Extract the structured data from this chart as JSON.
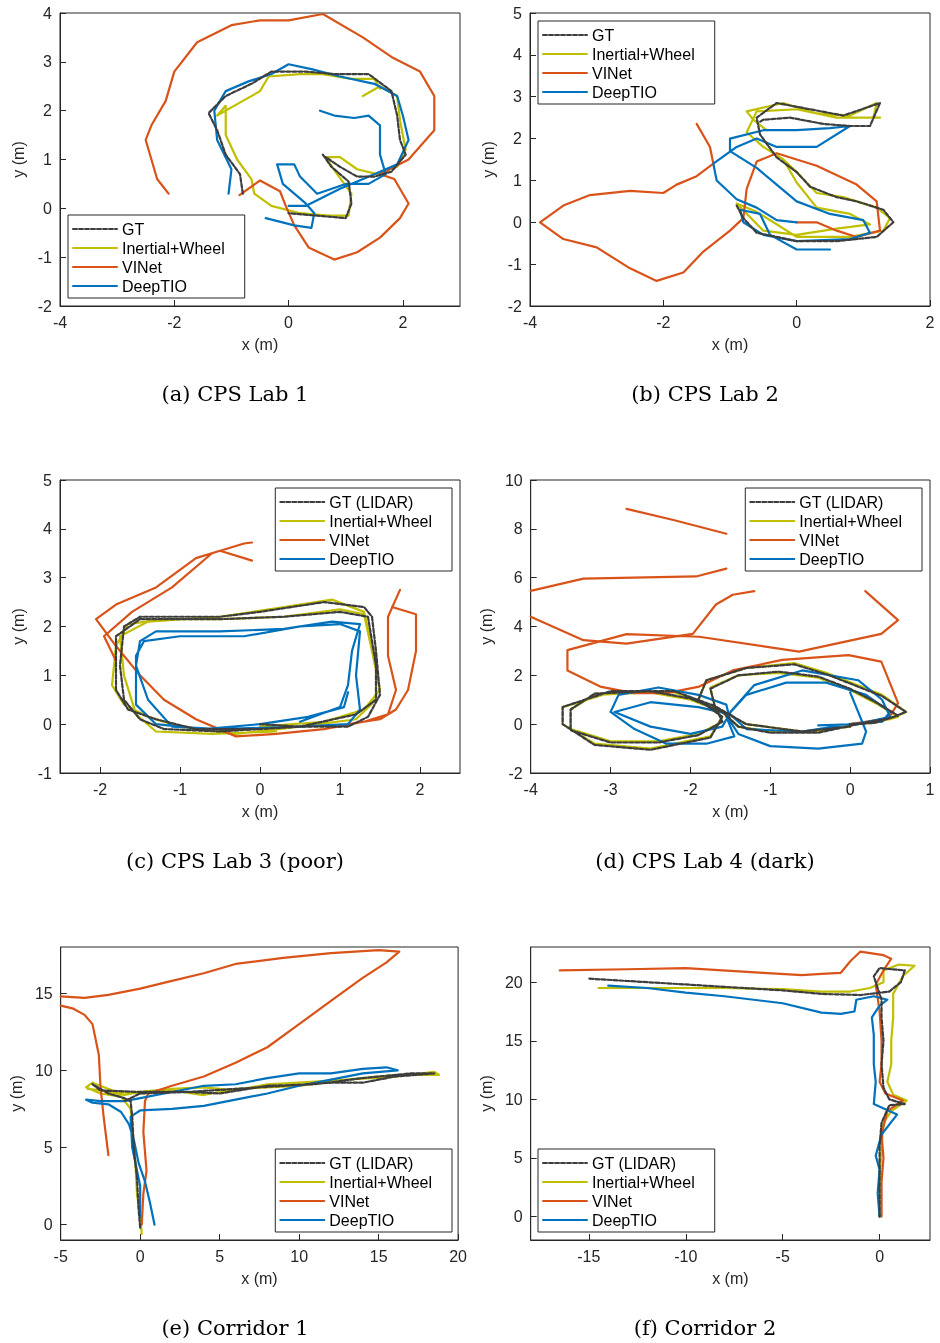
{
  "chart_data": [
    {
      "type": "line",
      "title": "(a) CPS Lab 1",
      "xlabel": "x (m)",
      "ylabel": "y (m)",
      "xlim": [
        -4,
        3
      ],
      "xticks": [
        -4,
        -2,
        0,
        2
      ],
      "ylim": [
        -2,
        4
      ],
      "yticks": [
        -2,
        -1,
        0,
        1,
        2,
        3,
        4
      ],
      "grid": false,
      "legend": "bottom left",
      "marker": "none",
      "series": [
        {
          "name": "GT",
          "color": "#3d3d3d",
          "line_style": "dashed",
          "x": [
            0.6,
            0.75,
            1.05,
            1.1,
            1.0,
            0.5,
            0,
            null,
            -0.8,
            -0.85,
            -1.1,
            -1.25,
            -1.4,
            -1.1,
            -0.65,
            -0.3,
            0.3,
            0.8,
            1.4,
            1.8,
            1.9,
            1.95,
            2.05,
            1.8,
            1.5,
            1.2,
            0.9,
            0.65
          ],
          "values": [
            1.1,
            0.85,
            0.55,
            0.1,
            -0.2,
            -0.15,
            -0.1,
            null,
            0.3,
            0.7,
            1.1,
            1.6,
            1.95,
            2.3,
            2.55,
            2.8,
            2.8,
            2.75,
            2.75,
            2.4,
            1.9,
            1.4,
            1.1,
            0.75,
            0.65,
            0.65,
            0.85,
            1.05
          ]
        },
        {
          "name": "Inertial+Wheel",
          "color": "#c0c000",
          "line_style": "solid",
          "x": [
            1.3,
            1.6,
            1.9,
            1.95,
            2.05,
            1.9,
            1.55,
            1.2,
            0.9,
            0.65,
            0.85,
            1.1,
            1.05,
            0.7,
            0.2,
            -0.3,
            -0.6,
            -0.65,
            -0.9,
            -1.1,
            -1.1,
            -1.25,
            -0.8,
            -0.5,
            -0.35,
            0.2,
            0.6,
            1.1,
            1.5,
            1.6
          ],
          "values": [
            2.3,
            2.5,
            2.3,
            1.8,
            1.2,
            0.85,
            0.7,
            0.8,
            1.05,
            1.05,
            0.7,
            0.3,
            -0.15,
            -0.15,
            -0.1,
            0.05,
            0.3,
            0.6,
            1.0,
            1.5,
            2.1,
            1.9,
            2.2,
            2.4,
            2.7,
            2.75,
            2.75,
            2.65,
            2.65,
            2.45
          ]
        },
        {
          "name": "VINet",
          "color": "#d95319",
          "line_style": "solid",
          "x": [
            -0.86,
            -0.5,
            -0.15,
            -0.05,
            0.1,
            0.35,
            0.8,
            1.2,
            1.6,
            1.95,
            2.1,
            1.85,
            1.6,
            2.1,
            2.55,
            2.55,
            2.3,
            1.8,
            1.3,
            0.6,
            0,
            -0.5,
            -1.0,
            -1.6,
            -2.0,
            -2.15,
            -2.4,
            -2.5,
            -2.3,
            -2.1
          ],
          "values": [
            0.27,
            0.57,
            0.35,
            0.05,
            -0.35,
            -0.8,
            -1.05,
            -0.9,
            -0.6,
            -0.2,
            0.1,
            0.6,
            0.7,
            1.0,
            1.6,
            2.3,
            2.8,
            3.1,
            3.5,
            3.98,
            3.85,
            3.85,
            3.75,
            3.4,
            2.8,
            2.2,
            1.7,
            1.4,
            0.6,
            0.3
          ]
        },
        {
          "name": "DeepTIO",
          "color": "#0072bd",
          "line_style": "solid",
          "x": [
            0.55,
            0.8,
            1.15,
            1.4,
            1.6,
            1.6,
            1.7,
            1.4,
            1.0,
            0.5,
            0.2,
            0.1,
            -0.2,
            -0.1,
            0.3,
            0.45,
            0.4,
            0.1,
            -0.4,
            null,
            -1.05,
            -1.0,
            -1.25,
            -1.3,
            -1.1,
            -0.7,
            -0.3,
            0,
            0.4,
            0.9,
            1.5,
            1.9,
            2.0,
            2.1,
            1.9,
            1.5,
            0.9,
            0.3,
            0
          ],
          "values": [
            2.0,
            1.9,
            1.85,
            1.9,
            1.7,
            1.1,
            0.7,
            0.5,
            0.5,
            0.3,
            0.65,
            0.9,
            0.9,
            0.5,
            0.1,
            -0.1,
            -0.4,
            -0.35,
            -0.2,
            null,
            0.3,
            0.8,
            1.4,
            2.0,
            2.4,
            2.6,
            2.75,
            2.95,
            2.85,
            2.7,
            2.55,
            2.3,
            1.9,
            1.4,
            0.9,
            0.7,
            0.4,
            0.05,
            0.05
          ]
        }
      ]
    },
    {
      "type": "line",
      "title": "(b) CPS Lab 2",
      "xlabel": "x (m)",
      "ylabel": "y (m)",
      "xlim": [
        -4,
        2
      ],
      "xticks": [
        -4,
        -2,
        0,
        2
      ],
      "ylim": [
        -2,
        5
      ],
      "yticks": [
        -2,
        -1,
        0,
        1,
        2,
        3,
        4,
        5
      ],
      "grid": false,
      "legend": "top left",
      "marker": "none",
      "series": [
        {
          "name": "GT",
          "color": "#3d3d3d",
          "line_style": "dashed",
          "x": [
            -0.9,
            -0.8,
            -0.6,
            0,
            0.6,
            1.2,
            1.45,
            1.3,
            0.9,
            0.6,
            0.2,
            0,
            -0.3,
            -0.55,
            -0.6,
            -0.3,
            0.2,
            0.7,
            1.25,
            1.1,
            0.8,
            0.4,
            -0.1,
            -0.5,
            -0.55
          ],
          "values": [
            0.4,
            0.1,
            -0.25,
            -0.45,
            -0.45,
            -0.35,
            0,
            0.3,
            0.5,
            0.6,
            0.85,
            1.2,
            1.55,
            2.1,
            2.5,
            2.85,
            2.7,
            2.55,
            2.85,
            2.3,
            2.3,
            2.35,
            2.5,
            2.45,
            2.4
          ]
        },
        {
          "name": "Inertial+Wheel",
          "color": "#c0c000",
          "line_style": "solid",
          "x": [
            -0.45,
            -0.65,
            -0.75,
            -0.2,
            0.3,
            0.8,
            1.2,
            1.15,
            1.25,
            0.6,
            0,
            -0.6,
            -0.75,
            -0.5,
            -0.2,
            0,
            0.3,
            0.8,
            1.1,
            0.6,
            0,
            -0.5,
            -0.9,
            -0.6,
            0,
            0.8,
            1.3,
            1.4,
            1.2,
            0.7,
            0.3,
            0,
            -0.2
          ],
          "values": [
            2.2,
            2.45,
            2.65,
            2.85,
            2.6,
            2.55,
            2.85,
            2.5,
            2.5,
            2.5,
            2.7,
            2.65,
            2.15,
            1.8,
            1.5,
            0.95,
            0.35,
            0.2,
            -0.05,
            -0.15,
            -0.3,
            -0.2,
            0.45,
            0.25,
            -0.35,
            -0.35,
            -0.2,
            0.1,
            0.35,
            0.6,
            0.7,
            1.2,
            1.5
          ]
        },
        {
          "name": "VINet",
          "color": "#d95319",
          "line_style": "solid",
          "x": [
            -1.5,
            -1.3,
            -1.25,
            -1.5,
            -1.8,
            -2,
            -2.5,
            -3.1,
            -3.5,
            -3.85,
            -3.5,
            -3.0,
            -2.5,
            -2.1,
            -1.7,
            -1.4,
            -1.0,
            -0.8,
            -0.75,
            -0.6,
            -0.3,
            0.3,
            0.9,
            1.2,
            1.25,
            0.9,
            0.6,
            0.3,
            0
          ],
          "values": [
            2.35,
            1.8,
            1.4,
            1.1,
            0.9,
            0.7,
            0.75,
            0.65,
            0.4,
            0,
            -0.4,
            -0.6,
            -1.1,
            -1.4,
            -1.2,
            -0.7,
            -0.2,
            0.1,
            0.8,
            1.45,
            1.65,
            1.35,
            0.9,
            0.5,
            -0.2,
            -0.35,
            -0.2,
            0,
            0
          ]
        },
        {
          "name": "DeepTIO",
          "color": "#0072bd",
          "line_style": "solid",
          "x": [
            0,
            -0.3,
            -0.6,
            -0.9,
            -1.2,
            -1.25,
            -0.9,
            -0.6,
            -0.3,
            0.3,
            0.8,
            0.5,
            0,
            -0.5,
            -1,
            -1.0,
            -0.6,
            -0.3,
            0,
            0.5,
            1.0,
            1.1,
            0.8,
            0,
            -0.5,
            -0.8,
            -0.85,
            -0.55,
            -0.4,
            0,
            0.5
          ],
          "values": [
            0,
            0.05,
            0.35,
            0.55,
            1.0,
            1.4,
            1.8,
            2.0,
            1.8,
            1.8,
            2.3,
            2.25,
            2.2,
            2.2,
            2.0,
            1.7,
            1.3,
            0.9,
            0.5,
            0.2,
            0.05,
            -0.25,
            -0.4,
            -0.45,
            -0.3,
            0,
            0.3,
            0.2,
            -0.3,
            -0.65,
            -0.65
          ]
        }
      ]
    },
    {
      "type": "line",
      "title": "(c) CPS Lab 3 (poor)",
      "xlabel": "x (m)",
      "ylabel": "y (m)",
      "xlim": [
        -2.5,
        2.5
      ],
      "xticks": [
        -2,
        -1,
        0,
        1,
        2
      ],
      "ylim": [
        -1,
        5
      ],
      "yticks": [
        -1,
        0,
        1,
        2,
        3,
        4,
        5
      ],
      "grid": false,
      "legend": "top right",
      "marker": "none",
      "series": [
        {
          "name": "GT (LIDAR)",
          "color": "#3d3d3d",
          "line_style": "dashed",
          "x": [
            0,
            0.5,
            1.1,
            1.35,
            1.5,
            1.45,
            1.4,
            1.3,
            0.8,
            0,
            -0.5,
            -1.0,
            -1.5,
            -1.7,
            -1.75,
            -1.7,
            -1.5,
            -1.2,
            -0.5,
            0.5,
            1.2,
            1.45,
            1.45,
            1.35,
            1.0,
            0.3,
            -0.5,
            -1.5,
            -1.8,
            -1.8,
            -1.65,
            -1.3,
            -0.8,
            0
          ],
          "values": [
            0,
            -0.05,
            -0.05,
            0.15,
            0.6,
            1.5,
            2.2,
            2.4,
            2.5,
            2.3,
            2.2,
            2.2,
            2.2,
            2.0,
            1.2,
            0.5,
            0.1,
            -0.1,
            -0.15,
            -0.05,
            0.2,
            0.5,
            1.2,
            2.2,
            2.3,
            2.2,
            2.15,
            2.15,
            1.8,
            0.7,
            0.3,
            0.1,
            -0.1,
            -0.1
          ]
        },
        {
          "name": "Inertial+Wheel",
          "color": "#c0c000",
          "line_style": "solid",
          "x": [
            0,
            0.8,
            1.3,
            1.5,
            1.4,
            1.3,
            1.0,
            0.3,
            -0.5,
            -1.2,
            -1.65,
            -1.8,
            -1.85,
            -1.7,
            -1.4,
            -1.0,
            -0.3,
            0.5,
            1.2,
            1.45,
            1.45,
            1.3,
            0.9,
            0.3,
            -0.5,
            -1.4,
            -1.75,
            -1.7,
            -1.55,
            -1.3,
            -0.6,
            0.2
          ],
          "values": [
            -0.05,
            0.05,
            0.3,
            0.7,
            1.5,
            2.25,
            2.35,
            2.2,
            2.15,
            2.15,
            2.05,
            1.6,
            0.8,
            0.4,
            0.15,
            -0.05,
            -0.2,
            -0.05,
            0.1,
            0.5,
            1.3,
            2.3,
            2.55,
            2.4,
            2.2,
            2.1,
            1.8,
            1.0,
            0.2,
            -0.15,
            -0.2,
            -0.15
          ]
        },
        {
          "name": "VINet",
          "color": "#d95319",
          "line_style": "solid",
          "x": [
            -1.8,
            -1.95,
            -1.6,
            -1.1,
            -0.6,
            -0.2,
            -0.1,
            null,
            1.75,
            1.6,
            1.6,
            1.7,
            1.6,
            1.3,
            0.8,
            0.2,
            -0.3,
            -0.8,
            -1.2,
            -1.5,
            -1.8,
            -2.05,
            -1.8,
            -1.3,
            -0.8,
            -0.5,
            -0.2,
            -0.1,
            null,
            1.65,
            1.95,
            1.95,
            1.85,
            1.7,
            1.5,
            1.1
          ],
          "values": [
            1.3,
            1.8,
            2.3,
            2.8,
            3.5,
            3.7,
            3.72,
            null,
            2.75,
            2.2,
            1.4,
            0.7,
            0.2,
            0.05,
            -0.1,
            -0.2,
            -0.25,
            0.1,
            0.5,
            1.0,
            1.6,
            2.15,
            2.45,
            2.8,
            3.4,
            3.55,
            3.4,
            3.35,
            null,
            2.4,
            2.25,
            1.5,
            0.7,
            0.3,
            0.1,
            0.0
          ]
        },
        {
          "name": "DeepTIO",
          "color": "#0072bd",
          "line_style": "solid",
          "x": [
            1.1,
            1.05,
            0.6,
            0,
            -0.7,
            -1.3,
            -1.55,
            -1.55,
            -1.45,
            -1.0,
            -0.2,
            0.5,
            1.0,
            1.25,
            1.2,
            1.25,
            1.1,
            0.5,
            -0.5,
            -1.1,
            -1.4,
            -1.55,
            -1.5,
            -1.3,
            -0.5,
            0.3,
            0.9,
            1.25,
            1.15,
            1.1,
            1.0,
            0.5
          ],
          "values": [
            0.65,
            0.35,
            0.15,
            0,
            -0.1,
            0,
            0.4,
            1.4,
            1.7,
            1.8,
            1.8,
            2.0,
            2.05,
            1.9,
            1.0,
            0.3,
            0.0,
            -0.05,
            -0.1,
            -0.05,
            0.5,
            1.2,
            1.7,
            1.9,
            1.9,
            1.95,
            2.1,
            2.05,
            1.5,
            0.8,
            0.35,
            0.05
          ]
        }
      ]
    },
    {
      "type": "line",
      "title": "(d) CPS Lab 4 (dark)",
      "xlabel": "x (m)",
      "ylabel": "y (m)",
      "xlim": [
        -4,
        1
      ],
      "xticks": [
        -4,
        -3,
        -2,
        -1,
        0,
        1
      ],
      "ylim": [
        -2,
        10
      ],
      "yticks": [
        -2,
        0,
        2,
        4,
        6,
        8,
        10
      ],
      "grid": false,
      "legend": "top right",
      "marker": "none",
      "series": [
        {
          "name": "GT (LIDAR)",
          "color": "#3d3d3d",
          "line_style": "dashed",
          "x": [
            0,
            0.3,
            0.6,
            0.35,
            0,
            -0.4,
            -0.9,
            -1.4,
            -1.75,
            -1.7,
            -1.6,
            -1.9,
            -2.4,
            -3.0,
            -3.5,
            -3.5,
            -3.2,
            -2.5,
            -2.0,
            -1.6,
            -1.4,
            -1.0,
            -0.4,
            0.1,
            0.5,
            0.7,
            0.4,
            -0.3,
            -0.7,
            -1.3,
            -1.8,
            -1.9,
            -1.6,
            -1.75,
            -2.5,
            -3.2,
            -3.6,
            -3.6,
            -3.0,
            -2.2,
            -1.7,
            -1.3,
            -0.6,
            0
          ],
          "values": [
            0,
            0.05,
            0.35,
            0.85,
            1.45,
            1.95,
            2.15,
            2.0,
            1.45,
            0.8,
            0.1,
            -0.45,
            -0.75,
            -0.75,
            -0.25,
            0.6,
            1.25,
            1.35,
            1.05,
            0.5,
            -0.1,
            -0.35,
            -0.35,
            0,
            0.25,
            0.5,
            1.15,
            2.05,
            2.45,
            2.3,
            1.8,
            1.0,
            0.3,
            -0.55,
            -1.05,
            -0.85,
            0,
            0.7,
            1.35,
            1.35,
            0.75,
            0,
            -0.3,
            -0.1
          ]
        },
        {
          "name": "Inertial+Wheel",
          "color": "#c0c000",
          "line_style": "solid",
          "x": [
            0,
            0.3,
            0.6,
            0.35,
            0,
            -0.4,
            -0.9,
            -1.4,
            -1.75,
            -1.7,
            -1.6,
            -1.9,
            -2.4,
            -3.0,
            -3.5,
            -3.5,
            -3.2,
            -2.5,
            -2.0,
            -1.6,
            -1.4,
            -1.0,
            -0.4,
            0.1,
            0.5,
            0.7,
            0.4,
            -0.3,
            -0.7,
            -1.3,
            -1.8,
            -1.9,
            -1.6,
            -1.75,
            -2.5,
            -3.2,
            -3.6,
            -3.6,
            -3.0,
            -2.2,
            -1.7,
            -1.3,
            -0.6,
            0
          ],
          "values": [
            0,
            0.05,
            0.3,
            0.8,
            1.4,
            1.9,
            2.1,
            2.0,
            1.5,
            0.8,
            0.1,
            -0.4,
            -0.7,
            -0.7,
            -0.2,
            0.6,
            1.2,
            1.3,
            1.0,
            0.5,
            -0.1,
            -0.3,
            -0.3,
            0,
            0.2,
            0.5,
            1.2,
            2.1,
            2.5,
            2.3,
            1.8,
            1.0,
            0.3,
            -0.5,
            -1.0,
            -0.8,
            0,
            0.7,
            1.3,
            1.3,
            0.7,
            0,
            -0.3,
            -0.1
          ]
        },
        {
          "name": "VINet",
          "color": "#d95319",
          "line_style": "solid",
          "x": [
            -2.8,
            -2.2,
            -1.55,
            null,
            -1.55,
            -1.93,
            -3.34,
            -4,
            null,
            -4,
            -3.34,
            -2.8,
            -1.97,
            -1.68,
            -1.47,
            -1.2,
            null,
            0.19,
            0.6,
            0.39,
            -0.64,
            -1.89,
            -2.8,
            -3.54,
            -3.54,
            -3.13,
            -2.71,
            -2.3,
            -1.89,
            -1.47,
            -0.85,
            -0.02,
            0.39,
            0.6,
            0.48,
            0
          ],
          "values": [
            8.82,
            8.35,
            7.8,
            null,
            6.37,
            6.05,
            5.96,
            5.46,
            null,
            4.4,
            3.44,
            3.3,
            3.7,
            4.9,
            5.3,
            5.45,
            null,
            5.45,
            4.26,
            3.7,
            2.97,
            3.58,
            3.69,
            3.03,
            2.2,
            1.54,
            1.27,
            1.27,
            1.54,
            2.2,
            2.63,
            2.83,
            2.56,
            0.86,
            0.24,
            0
          ]
        },
        {
          "name": "DeepTIO",
          "color": "#0072bd",
          "line_style": "solid",
          "x": [
            0,
            0.1,
            0.2,
            0.15,
            -0.4,
            -1.0,
            -1.4,
            -1.5,
            -1.55,
            -1.9,
            -2.4,
            -2.9,
            -3.0,
            -2.7,
            -2.3,
            -1.8,
            -1.45,
            -1.55,
            -1.3,
            -0.8,
            -0.3,
            0.2,
            0.5,
            0.4,
            0,
            -0.6,
            -1.3,
            -1.5,
            -1.9,
            -2.5,
            -2.95,
            -2.5,
            -2.0,
            -1.6,
            -1.5,
            -1.2,
            -0.6,
            0.1,
            0.4,
            0.5,
            0.1,
            -0.4
          ],
          "values": [
            1.3,
            0.5,
            -0.3,
            -0.8,
            -1.0,
            -0.9,
            -0.4,
            0.1,
            0.8,
            1.2,
            1.5,
            1.2,
            0.5,
            -0.2,
            -0.8,
            -0.8,
            -0.5,
            0.3,
            1.2,
            1.7,
            1.7,
            1.2,
            0.5,
            0.1,
            0,
            -0.3,
            -0.2,
            0.4,
            0.7,
            0.9,
            0.5,
            -0.1,
            -0.4,
            -0.1,
            0.5,
            1.6,
            2.2,
            1.8,
            1.0,
            0.3,
            0,
            -0.05
          ]
        }
      ]
    },
    {
      "type": "line",
      "title": "(e) Corridor 1",
      "xlabel": "x (m)",
      "ylabel": "y (m)",
      "xlim": [
        -5,
        20
      ],
      "xticks": [
        -5,
        0,
        5,
        10,
        15,
        20
      ],
      "ylim": [
        -1,
        18
      ],
      "yticks": [
        0,
        5,
        10,
        15
      ],
      "grid": false,
      "legend": "bottom right",
      "marker": "none",
      "series": [
        {
          "name": "GT (LIDAR)",
          "color": "#3d3d3d",
          "line_style": "dashed",
          "x": [
            0,
            -0.1,
            -0.2,
            -0.4,
            -0.5,
            -0.6,
            -1,
            -2,
            -3,
            -2.5,
            0,
            3,
            6,
            9,
            12,
            14,
            16,
            18.5,
            17,
            14,
            11,
            8,
            5,
            3,
            0,
            -1
          ],
          "values": [
            -0.2,
            1,
            3,
            5,
            7,
            8,
            8.2,
            8.5,
            9.1,
            8.7,
            8.6,
            8.6,
            8.8,
            9.0,
            9.2,
            9.2,
            9.6,
            9.8,
            9.8,
            9.5,
            9.1,
            9.0,
            8.5,
            8.6,
            8.5,
            8.0
          ]
        },
        {
          "name": "Inertial+Wheel",
          "color": "#c0c000",
          "line_style": "solid",
          "x": [
            0.1,
            0,
            -0.2,
            -0.3,
            -0.5,
            -0.6,
            -1.2,
            -2.5,
            -3.4,
            -3,
            -1.5,
            0,
            2,
            4,
            6,
            8,
            10,
            13,
            16,
            18.5,
            18.8,
            16,
            13,
            10,
            8,
            6,
            4,
            2,
            0,
            -1,
            -2.5,
            -3.3
          ],
          "values": [
            -0.6,
            0.5,
            2,
            4,
            6,
            7.5,
            8.3,
            8.5,
            8.9,
            9.2,
            8.6,
            8.5,
            8.7,
            8.4,
            8.8,
            8.9,
            9.0,
            9.4,
            9.6,
            9.9,
            9.7,
            9.7,
            9.4,
            9.2,
            9.1,
            8.7,
            8.9,
            8.8,
            8.6,
            8.4,
            8.7,
            8.8
          ]
        },
        {
          "name": "VINet",
          "color": "#d95319",
          "line_style": "solid",
          "x": [
            -2,
            -2.3,
            -2.5,
            -2.6,
            -2.8,
            -3,
            -3.5,
            -4.2,
            -5,
            null,
            -5,
            -3.5,
            -2,
            0,
            2,
            4,
            6,
            9,
            12,
            15,
            16.3,
            15.5,
            14,
            12,
            10,
            8,
            6,
            4,
            2,
            0.5,
            0.3,
            0.2,
            0.4,
            0.2,
            0.1
          ],
          "values": [
            4.5,
            7,
            9,
            11,
            12,
            13,
            13.6,
            14,
            14.2,
            null,
            14.8,
            14.7,
            14.9,
            15.3,
            15.8,
            16.3,
            16.9,
            17.3,
            17.6,
            17.8,
            17.7,
            17,
            16,
            14.5,
            13,
            11.5,
            10.5,
            9.6,
            9,
            8.5,
            8,
            6,
            3.5,
            2,
            0
          ]
        },
        {
          "name": "DeepTIO",
          "color": "#0072bd",
          "line_style": "solid",
          "x": [
            0.9,
            0.6,
            0.3,
            -0.1,
            -0.4,
            -0.7,
            -1.2,
            -2,
            -3,
            -3.4,
            -2.5,
            -1,
            0,
            2,
            4,
            6,
            8,
            10,
            12,
            14,
            15.5,
            16.2,
            14,
            12,
            10,
            8,
            6,
            4,
            2,
            0,
            -0.6,
            -0.5,
            -0.2,
            0,
            0
          ],
          "values": [
            0,
            1.5,
            2.8,
            4,
            5.5,
            6.5,
            7.3,
            7.8,
            7.9,
            8.1,
            8.0,
            8.0,
            8.2,
            8.6,
            9.0,
            9.1,
            9.5,
            9.8,
            9.8,
            10.1,
            10.2,
            10,
            9.8,
            9.4,
            9.0,
            8.5,
            8.1,
            7.7,
            7.5,
            7.4,
            7,
            5,
            3.5,
            2.5,
            0.5
          ]
        }
      ]
    },
    {
      "type": "line",
      "title": "(f) Corridor 2",
      "xlabel": "x (m)",
      "ylabel": "y (m)",
      "xlim": [
        -18,
        2.6
      ],
      "xticks": [
        -15,
        -10,
        -5,
        0
      ],
      "ylim": [
        -2,
        23
      ],
      "yticks": [
        0,
        5,
        10,
        15,
        20
      ],
      "grid": false,
      "legend": "bottom left",
      "marker": "none",
      "series": [
        {
          "name": "GT (LIDAR)",
          "color": "#3d3d3d",
          "line_style": "dashed",
          "x": [
            0,
            0,
            0,
            0.1,
            0.5,
            1.3,
            0.5,
            0.2,
            0.1,
            0.2,
            0.1,
            0.1,
            -0.3,
            0,
            1.3,
            1.1,
            0.5,
            -1,
            -3,
            -5,
            -8,
            -11,
            -13,
            -15
          ],
          "values": [
            0,
            3,
            6,
            8,
            9.5,
            9.6,
            10,
            11,
            13,
            15,
            17,
            18.5,
            20.5,
            21.2,
            21,
            20,
            19.2,
            18.9,
            19,
            19.3,
            19.6,
            19.9,
            20.1,
            20.3
          ]
        },
        {
          "name": "Inertial+Wheel",
          "color": "#c0c000",
          "line_style": "solid",
          "x": [
            0,
            0,
            0.1,
            0.2,
            0.6,
            1.4,
            0.7,
            0.4,
            0.6,
            0.6,
            0.7,
            0.7,
            1.2,
            1.8,
            1.0,
            0.2,
            0.2,
            -0.5,
            -1.5,
            -3,
            -5,
            -8,
            -10,
            -12,
            -14.5
          ],
          "values": [
            0,
            3,
            6,
            8,
            9,
            9.9,
            10.4,
            11.5,
            13,
            15,
            17,
            19,
            20.5,
            21.4,
            21.5,
            21,
            20,
            19.5,
            19.2,
            19.2,
            19.4,
            19.5,
            19.5,
            19.5,
            19.5
          ]
        },
        {
          "name": "VINet",
          "color": "#d95319",
          "line_style": "solid",
          "x": [
            0.1,
            0.1,
            0.2,
            0.1,
            0.4,
            1.2,
            0.3,
            0,
            0.1,
            0.1,
            0,
            -0.2,
            0.2,
            0.6,
            0.2,
            -1,
            -1.5,
            -2,
            -3,
            -4,
            -6,
            -10,
            -13,
            -16.5
          ],
          "values": [
            0,
            3,
            5,
            7,
            9,
            9.9,
            10.5,
            11.5,
            13,
            15,
            17.5,
            19.8,
            21,
            22,
            22.3,
            22.6,
            21.8,
            20.8,
            20.7,
            20.6,
            20.8,
            21.2,
            21.1,
            21.0
          ]
        },
        {
          "name": "DeepTIO",
          "color": "#0072bd",
          "line_style": "solid",
          "x": [
            0,
            -0.1,
            0,
            -0.2,
            0.1,
            0.9,
            0.5,
            -0.3,
            -0.2,
            -0.3,
            -0.3,
            -0.4,
            0,
            0.4,
            -0.3,
            -1.2,
            -1.3,
            -2,
            -3,
            -5,
            -8,
            -10,
            -12,
            -14
          ],
          "values": [
            0,
            2,
            4,
            5.2,
            7,
            8.7,
            9,
            9.6,
            11.5,
            13,
            15.5,
            17,
            18,
            18.5,
            18.8,
            18.5,
            17.5,
            17.3,
            17.4,
            18.2,
            18.8,
            19.1,
            19.5,
            19.7
          ]
        }
      ]
    }
  ]
}
